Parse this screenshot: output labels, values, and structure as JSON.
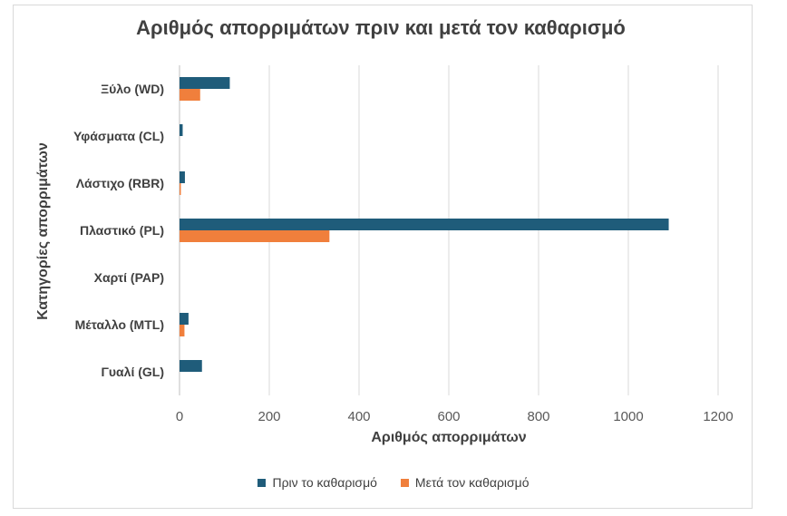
{
  "chart_data": {
    "type": "bar",
    "orientation": "horizontal",
    "title": "Αριθμός απορριμάτων πριν και μετά τον καθαρισμό",
    "xlabel": "Αριθμός απορριμάτων",
    "ylabel": "Κατηγορίες απορριμάτων",
    "categories": [
      "Ξύλο (WD)",
      "Υφάσματα (CL)",
      "Λάστιχο (RBR)",
      "Πλαστικό (PL)",
      "Χαρτί (PAP)",
      "Μέταλλο (MTL)",
      "Γυαλί (GL)"
    ],
    "series": [
      {
        "name": "Πριν το καθαρισμό",
        "color": "#1f5c7a",
        "values": [
          112,
          7,
          12,
          1090,
          0,
          20,
          50
        ]
      },
      {
        "name": "Μετά τον καθαρισμό",
        "color": "#f07f3c",
        "values": [
          46,
          0,
          3,
          334,
          0,
          11,
          0
        ]
      }
    ],
    "xlim": [
      0,
      1200
    ],
    "xticks": [
      "0",
      "200",
      "400",
      "600",
      "800",
      "1000",
      "1200"
    ],
    "grid": true,
    "legend_position": "bottom"
  }
}
